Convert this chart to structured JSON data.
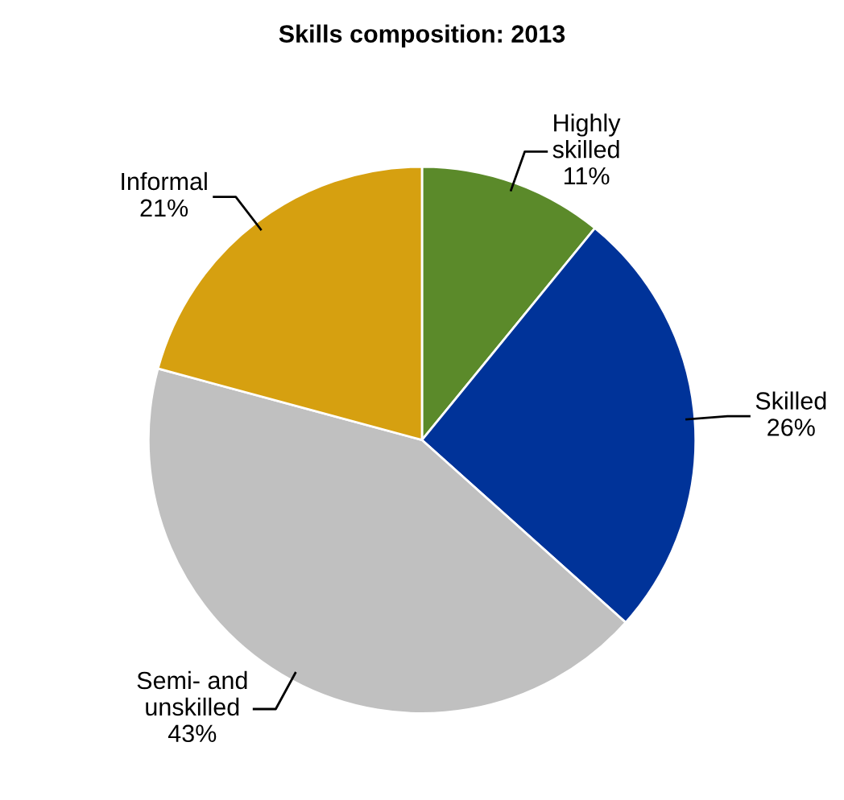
{
  "chart_data": {
    "type": "pie",
    "title": "Skills composition: 2013",
    "categories": [
      "Highly\nskilled",
      "Skilled",
      "Semi- and\nunskilled",
      "Informal"
    ],
    "values": [
      11,
      26,
      43,
      21
    ],
    "value_labels": [
      "11%",
      "26%",
      "43%",
      "21%"
    ],
    "colors": [
      "#5b8a2a",
      "#003399",
      "#c0c0c0",
      "#d6a010"
    ]
  }
}
